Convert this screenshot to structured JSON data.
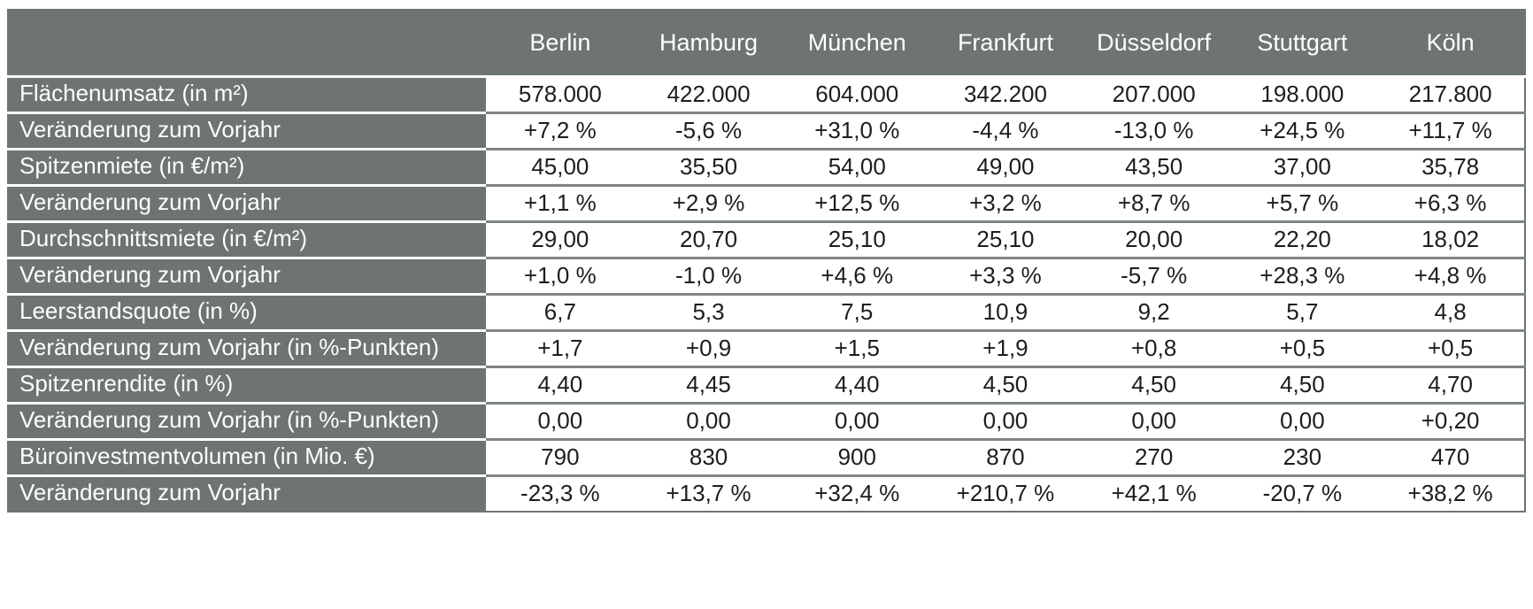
{
  "colors": {
    "header_bg": "#6d7473",
    "label_bg": "#6d7473",
    "header_text": "#ffffff",
    "cell_text": "#1d1d1b",
    "row_divider": "#7f8586",
    "label_divider": "#ffffff"
  },
  "chart_data": {
    "type": "table",
    "title": "",
    "corner_label": "",
    "columns": [
      "Berlin",
      "Hamburg",
      "München",
      "Frankfurt",
      "Düsseldorf",
      "Stuttgart",
      "Köln"
    ],
    "rows": [
      {
        "label": "Flächenumsatz (in m²)",
        "values": [
          "578.000",
          "422.000",
          "604.000",
          "342.200",
          "207.000",
          "198.000",
          "217.800"
        ]
      },
      {
        "label": "Veränderung zum Vorjahr",
        "values": [
          "+7,2 %",
          "-5,6 %",
          "+31,0 %",
          "-4,4 %",
          "-13,0 %",
          "+24,5 %",
          "+11,7 %"
        ]
      },
      {
        "label": "Spitzenmiete (in €/m²)",
        "values": [
          "45,00",
          "35,50",
          "54,00",
          "49,00",
          "43,50",
          "37,00",
          "35,78"
        ]
      },
      {
        "label": "Veränderung zum Vorjahr",
        "values": [
          "+1,1 %",
          "+2,9 %",
          "+12,5 %",
          "+3,2 %",
          "+8,7 %",
          "+5,7 %",
          "+6,3 %"
        ]
      },
      {
        "label": "Durchschnittsmiete (in €/m²)",
        "values": [
          "29,00",
          "20,70",
          "25,10",
          "25,10",
          "20,00",
          "22,20",
          "18,02"
        ]
      },
      {
        "label": "Veränderung zum Vorjahr",
        "values": [
          "+1,0 %",
          "-1,0 %",
          "+4,6 %",
          "+3,3 %",
          "-5,7 %",
          "+28,3 %",
          "+4,8 %"
        ]
      },
      {
        "label": "Leerstandsquote (in %)",
        "values": [
          "6,7",
          "5,3",
          "7,5",
          "10,9",
          "9,2",
          "5,7",
          "4,8"
        ]
      },
      {
        "label": "Veränderung zum Vorjahr (in %-Punkten)",
        "values": [
          "+1,7",
          "+0,9",
          "+1,5",
          "+1,9",
          "+0,8",
          "+0,5",
          "+0,5"
        ]
      },
      {
        "label": "Spitzenrendite (in %)",
        "values": [
          "4,40",
          "4,45",
          "4,40",
          "4,50",
          "4,50",
          "4,50",
          "4,70"
        ]
      },
      {
        "label": "Veränderung zum Vorjahr (in %-Punkten)",
        "values": [
          "0,00",
          "0,00",
          "0,00",
          "0,00",
          "0,00",
          "0,00",
          "+0,20"
        ]
      },
      {
        "label": "Büroinvestmentvolumen (in Mio. €)",
        "values": [
          "790",
          "830",
          "900",
          "870",
          "270",
          "230",
          "470"
        ]
      },
      {
        "label": "Veränderung zum Vorjahr",
        "values": [
          "-23,3 %",
          "+13,7 %",
          "+32,4 %",
          "+210,7 %",
          "+42,1 %",
          "-20,7 %",
          "+38,2 %"
        ]
      }
    ]
  }
}
